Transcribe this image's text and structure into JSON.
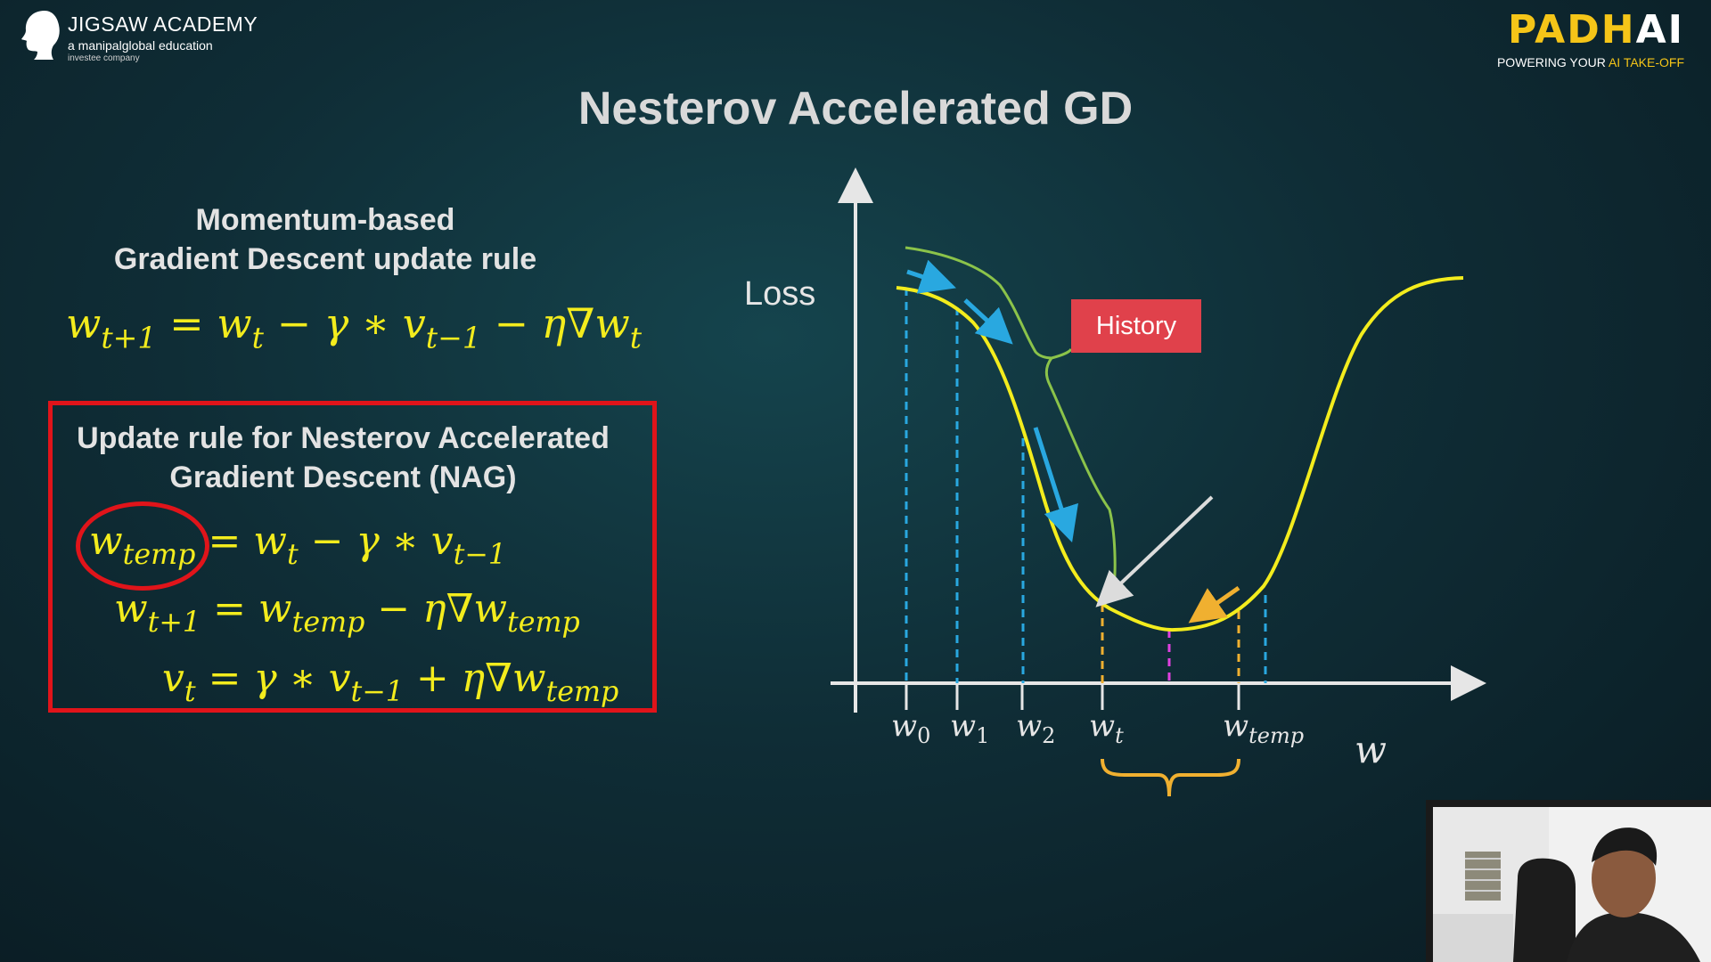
{
  "branding": {
    "jigsaw_name": "JIGSAW ACADEMY",
    "jigsaw_sub": "a manipalglobal education",
    "jigsaw_sub2": "investee company",
    "padhai_logo_main": "PADH",
    "padhai_logo_ai": "AI",
    "padhai_tag_start": "POWERING YOUR ",
    "padhai_tag_highlight": "AI TAKE-OFF"
  },
  "slide": {
    "title": "Nesterov Accelerated GD",
    "momentum_heading_line1": "Momentum-based",
    "momentum_heading_line2": "Gradient Descent update rule",
    "nag_heading_line1": "Update rule for Nesterov Accelerated",
    "nag_heading_line2": "Gradient Descent (NAG)"
  },
  "equations": {
    "momentum_rule": "w_{t+1} = w_t − γ * v_{t−1} − η∇w_t",
    "nag_temp": "w_temp = w_t − γ * v_{t−1}",
    "nag_update": "w_{t+1} = w_temp − η∇w_temp",
    "nag_velocity": "v_t = γ * v_{t−1} + η∇w_temp"
  },
  "diagram": {
    "y_label": "Loss",
    "x_label": "w",
    "history_label": "History",
    "ticks": [
      "w0",
      "w1",
      "w2",
      "wt",
      "wtemp"
    ],
    "colors": {
      "curve": "#f3ec1d",
      "history": "#8bc34a",
      "steps": "#29a8e0",
      "lookahead": "#f0b030",
      "midpoint": "#e040e0",
      "highlight_box": "#e0141a",
      "history_badge": "#e0414b"
    }
  }
}
